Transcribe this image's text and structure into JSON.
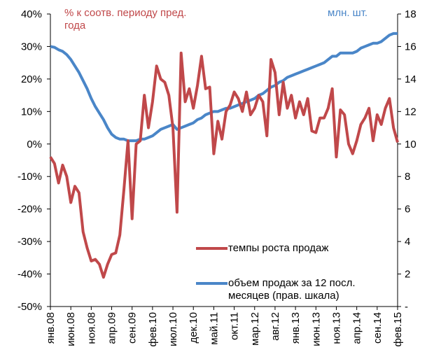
{
  "chart_data": {
    "type": "line",
    "y_label": "% к соотв. периоду пред. года",
    "y2_label": "млн. шт.",
    "categories": [
      "янв.08",
      null,
      null,
      null,
      null,
      "июн.08",
      null,
      null,
      null,
      null,
      "ноя.08",
      null,
      null,
      null,
      null,
      "апр.09",
      null,
      null,
      null,
      null,
      "сен.09",
      null,
      null,
      null,
      null,
      "фев.10",
      null,
      null,
      null,
      null,
      "июл.10",
      null,
      null,
      null,
      null,
      "дек.10",
      null,
      null,
      null,
      null,
      "май.11",
      null,
      null,
      null,
      null,
      "окт.11",
      null,
      null,
      null,
      null,
      "мар.12",
      null,
      null,
      null,
      null,
      "авг.12",
      null,
      null,
      null,
      null,
      "янв.13",
      null,
      null,
      null,
      null,
      "июн.13",
      null,
      null,
      null,
      null,
      "ноя.13",
      null,
      null,
      null,
      null,
      "апр.14",
      null,
      null,
      null,
      null,
      "сен.14",
      null,
      null,
      null,
      null,
      "фев.15"
    ],
    "series": [
      {
        "name": "темпы роста продаж",
        "color": "#c0484a",
        "axis": "y",
        "values": [
          -4,
          -6,
          -12,
          -6.5,
          -10,
          -18,
          -13,
          -15,
          -27,
          -32,
          -36,
          -35.5,
          -37,
          -41,
          -37,
          -34,
          -33.5,
          -28,
          -14,
          1,
          -23,
          0,
          1,
          15,
          5,
          13,
          24,
          20,
          19,
          15,
          5,
          -21,
          28,
          13,
          17,
          11,
          18,
          27,
          17,
          17.5,
          -3,
          7,
          1.5,
          10,
          12,
          16,
          14,
          10,
          16,
          9,
          11,
          15,
          13,
          2.5,
          26,
          22,
          9,
          19,
          11,
          15,
          8,
          13,
          9,
          14,
          4,
          3.5,
          8,
          8,
          11,
          17,
          -4,
          10.5,
          9,
          0,
          -3,
          1,
          6,
          8,
          11,
          1,
          9,
          6,
          11,
          14,
          5,
          0.5
        ]
      },
      {
        "name": "объем продаж за 12 посл. месяцев (прав. шкала)",
        "color": "#4a86c8",
        "axis": "y2",
        "values": [
          16.0,
          15.95,
          15.8,
          15.7,
          15.5,
          15.2,
          14.8,
          14.4,
          13.9,
          13.4,
          12.8,
          12.3,
          11.9,
          11.5,
          11.0,
          10.6,
          10.4,
          10.3,
          10.3,
          10.2,
          10.2,
          10.2,
          10.3,
          10.3,
          10.4,
          10.5,
          10.7,
          10.9,
          11.0,
          11.1,
          11.2,
          10.9,
          11.0,
          11.1,
          11.2,
          11.3,
          11.5,
          11.6,
          11.8,
          11.9,
          12.0,
          12.0,
          12.1,
          12.2,
          12.2,
          12.3,
          12.4,
          12.5,
          12.6,
          12.7,
          12.8,
          13.0,
          13.1,
          13.3,
          13.5,
          13.6,
          13.8,
          13.9,
          14.1,
          14.2,
          14.3,
          14.4,
          14.5,
          14.6,
          14.7,
          14.8,
          14.9,
          15.0,
          15.2,
          15.4,
          15.4,
          15.6,
          15.6,
          15.6,
          15.6,
          15.7,
          15.9,
          16.0,
          16.1,
          16.2,
          16.2,
          16.3,
          16.5,
          16.7,
          16.8,
          16.8
        ]
      }
    ],
    "ylim": [
      -50,
      40
    ],
    "yticks": [
      {
        "value": -50,
        "label": "-50%"
      },
      {
        "value": -40,
        "label": "-40%"
      },
      {
        "value": -30,
        "label": "-30%"
      },
      {
        "value": -20,
        "label": "-20%"
      },
      {
        "value": -10,
        "label": "-10%"
      },
      {
        "value": 0,
        "label": "0%"
      },
      {
        "value": 10,
        "label": "10%"
      },
      {
        "value": 20,
        "label": "20%"
      },
      {
        "value": 30,
        "label": "30%"
      },
      {
        "value": 40,
        "label": "40%"
      }
    ],
    "y2lim": [
      0,
      18
    ],
    "y2ticks": [
      {
        "value": 0,
        "label": "-"
      },
      2,
      4,
      6,
      8,
      10,
      12,
      14,
      16,
      18
    ],
    "grid": false
  }
}
